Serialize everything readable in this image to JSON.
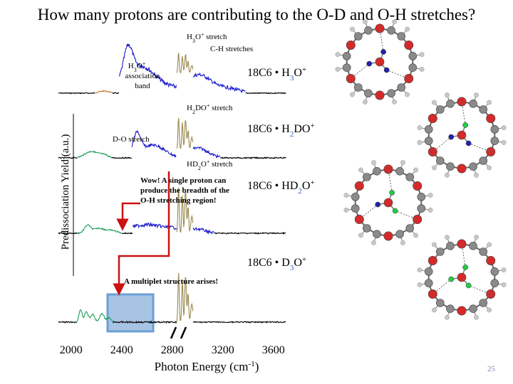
{
  "slide": {
    "title": "How many protons are contributing to the O-D and O-H stretches?",
    "page_number": "25"
  },
  "chart_data": {
    "type": "line",
    "xlabel_base": "Photon Energy (cm",
    "xlabel_sup": "-1",
    "xlabel_close": ")",
    "ylabel": "Predissociation Yield (a.u.)",
    "xlim": [
      1900,
      3700
    ],
    "xticks": [
      2000,
      2400,
      2800,
      3200,
      3600
    ],
    "grid": false,
    "axis_break": true,
    "panels": [
      {
        "id": "h3o",
        "label_pre": "18C6 • H",
        "label_sub": "3",
        "label_post": "O",
        "label_sup": "+"
      },
      {
        "id": "h2do",
        "label_pre": "18C6 • H",
        "label_sub": "2",
        "label_post": "DO",
        "label_sup": "+"
      },
      {
        "id": "hd2o",
        "label_pre": "18C6 • HD",
        "label_sub": "2",
        "label_post": "O",
        "label_sup": "+"
      },
      {
        "id": "d3o",
        "label_pre": "18C6 • D",
        "label_sub": "3",
        "label_post": "O",
        "label_sup": "+"
      }
    ],
    "annotations": {
      "h3o_stretch_pre": "H",
      "h3o_stretch_sub": "3",
      "h3o_stretch_post": "O",
      "h3o_stretch_sup": "+",
      "h3o_stretch_tail": " stretch",
      "ch_stretches": "C-H stretches",
      "assoc_pre": "H",
      "assoc_sub": "3",
      "assoc_post": "O",
      "assoc_sup": "+",
      "assoc_line2": "association",
      "assoc_line3": "band",
      "h2do_stretch_pre": "H",
      "h2do_stretch_sub": "2",
      "h2do_stretch_post": "DO",
      "h2do_stretch_sup": "+",
      "h2do_stretch_tail": " stretch",
      "od_stretch": "D-O stretch",
      "hd2o_stretch_pre": "HD",
      "hd2o_stretch_sub": "2",
      "hd2o_stretch_post": "O",
      "hd2o_stretch_sup": "+",
      "hd2o_stretch_tail": " stretch",
      "wow_line1": "Wow! A single proton can",
      "wow_line2": "produce the breadth of the",
      "wow_line3": "O-H stretching region!",
      "multiplet": "A multiplet structure arises!"
    }
  },
  "colors": {
    "oh_band": "#1a1acc",
    "od_band": "#1e9e5a",
    "ch_band": "#9a8a50",
    "assoc_band": "#c07828",
    "baseline": "#000000",
    "arrow": "#cc1111",
    "highlight_fill": "#a8c4e4",
    "highlight_border": "#6a9fd4",
    "label_accent": "#2a62b8",
    "oxygen": "#d42a2a",
    "carbon": "#8a8a8a",
    "hydrogen": "#c8c8c8",
    "deuterium": "#22cc44",
    "proton_h": "#2222aa"
  },
  "molecule_icons": [
    {
      "id": "h3o",
      "centre_atoms": [
        "H",
        "H",
        "H"
      ]
    },
    {
      "id": "h2do",
      "centre_atoms": [
        "D",
        "H",
        "H"
      ]
    },
    {
      "id": "hd2o",
      "centre_atoms": [
        "D",
        "D",
        "H"
      ]
    },
    {
      "id": "d3o",
      "centre_atoms": [
        "D",
        "D",
        "D"
      ]
    }
  ]
}
